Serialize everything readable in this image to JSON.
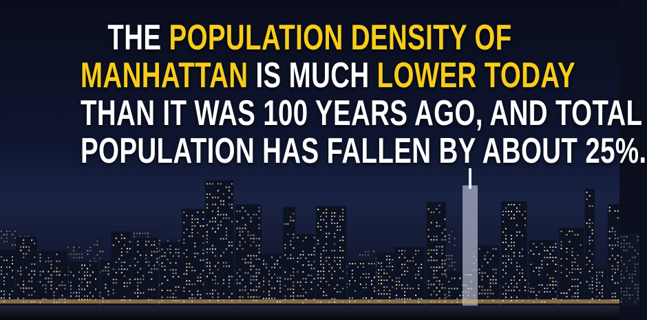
{
  "headline": {
    "lines": [
      [
        "THE",
        "POPULATION DENSITY OF"
      ],
      [
        "MANHATTAN",
        "IS MUCH",
        "LOWER TODAY"
      ],
      [
        "THAN IT WAS 100 YEARS AGO, AND TOTAL"
      ],
      [
        "POPULATION HAS FALLEN BY ABOUT 25%."
      ]
    ]
  }
}
